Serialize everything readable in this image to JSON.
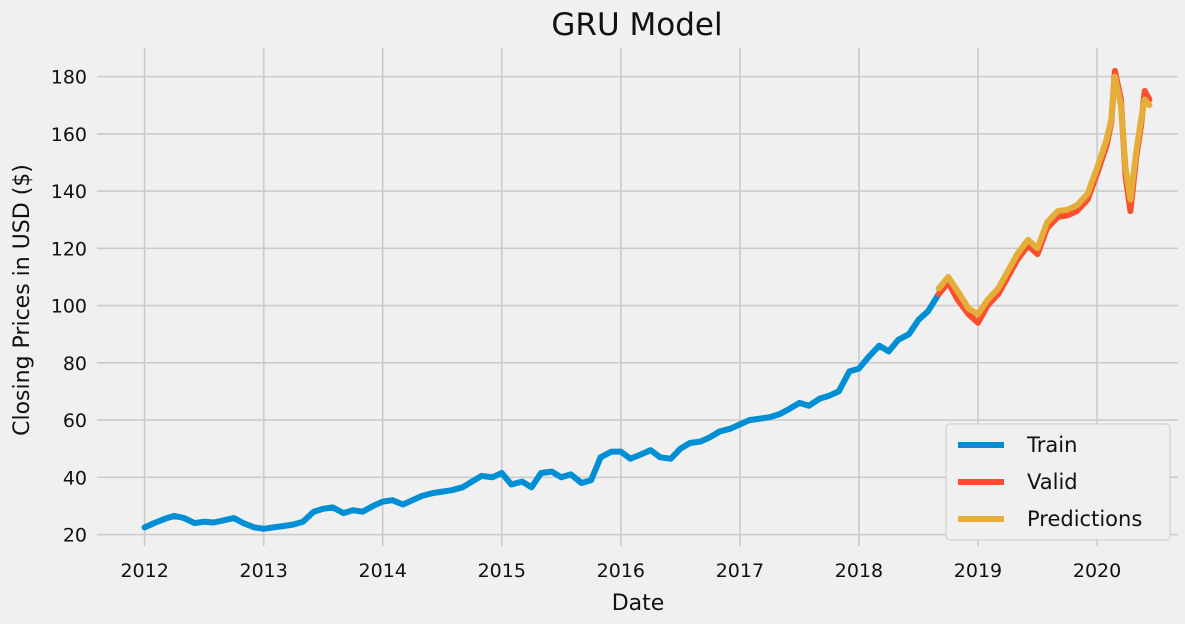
{
  "chart_data": {
    "type": "line",
    "title": "GRU Model",
    "xlabel": "Date",
    "ylabel": "Closing Prices in USD ($)",
    "xlim": [
      2011.6,
      2020.68
    ],
    "ylim": [
      16,
      190
    ],
    "x_ticks": [
      2012,
      2013,
      2014,
      2015,
      2016,
      2017,
      2018,
      2019,
      2020
    ],
    "x_tick_labels": [
      "2012",
      "2013",
      "2014",
      "2015",
      "2016",
      "2017",
      "2018",
      "2019",
      "2020"
    ],
    "y_ticks": [
      20,
      40,
      60,
      80,
      100,
      120,
      140,
      160,
      180
    ],
    "y_tick_labels": [
      "20",
      "40",
      "60",
      "80",
      "100",
      "120",
      "140",
      "160",
      "180"
    ],
    "grid": true,
    "legend_position": "bottom-right",
    "series": [
      {
        "name": "Train",
        "color": "#008fd5",
        "points": [
          [
            2012.0,
            22.5
          ],
          [
            2012.08,
            24.0
          ],
          [
            2012.17,
            25.5
          ],
          [
            2012.25,
            26.5
          ],
          [
            2012.33,
            25.8
          ],
          [
            2012.42,
            24.0
          ],
          [
            2012.5,
            24.5
          ],
          [
            2012.58,
            24.2
          ],
          [
            2012.67,
            25.0
          ],
          [
            2012.75,
            25.8
          ],
          [
            2012.83,
            24.0
          ],
          [
            2012.92,
            22.5
          ],
          [
            2013.0,
            22.0
          ],
          [
            2013.08,
            22.5
          ],
          [
            2013.17,
            23.0
          ],
          [
            2013.25,
            23.5
          ],
          [
            2013.33,
            24.5
          ],
          [
            2013.42,
            28.0
          ],
          [
            2013.5,
            29.0
          ],
          [
            2013.58,
            29.5
          ],
          [
            2013.67,
            27.5
          ],
          [
            2013.75,
            28.5
          ],
          [
            2013.83,
            28.0
          ],
          [
            2013.92,
            30.0
          ],
          [
            2014.0,
            31.5
          ],
          [
            2014.08,
            32.0
          ],
          [
            2014.17,
            30.5
          ],
          [
            2014.25,
            32.0
          ],
          [
            2014.33,
            33.5
          ],
          [
            2014.42,
            34.5
          ],
          [
            2014.5,
            35.0
          ],
          [
            2014.58,
            35.5
          ],
          [
            2014.67,
            36.5
          ],
          [
            2014.75,
            38.5
          ],
          [
            2014.83,
            40.5
          ],
          [
            2014.92,
            40.0
          ],
          [
            2015.0,
            41.5
          ],
          [
            2015.08,
            37.5
          ],
          [
            2015.17,
            38.5
          ],
          [
            2015.25,
            36.5
          ],
          [
            2015.33,
            41.5
          ],
          [
            2015.42,
            42.0
          ],
          [
            2015.5,
            40.0
          ],
          [
            2015.58,
            41.0
          ],
          [
            2015.67,
            38.0
          ],
          [
            2015.75,
            39.0
          ],
          [
            2015.83,
            47.0
          ],
          [
            2015.92,
            49.0
          ],
          [
            2016.0,
            49.0
          ],
          [
            2016.08,
            46.5
          ],
          [
            2016.17,
            48.0
          ],
          [
            2016.25,
            49.5
          ],
          [
            2016.33,
            47.0
          ],
          [
            2016.42,
            46.5
          ],
          [
            2016.5,
            50.0
          ],
          [
            2016.58,
            52.0
          ],
          [
            2016.67,
            52.5
          ],
          [
            2016.75,
            54.0
          ],
          [
            2016.83,
            56.0
          ],
          [
            2016.92,
            57.0
          ],
          [
            2017.0,
            58.5
          ],
          [
            2017.08,
            60.0
          ],
          [
            2017.17,
            60.5
          ],
          [
            2017.25,
            61.0
          ],
          [
            2017.33,
            62.0
          ],
          [
            2017.42,
            64.0
          ],
          [
            2017.5,
            66.0
          ],
          [
            2017.58,
            65.0
          ],
          [
            2017.67,
            67.5
          ],
          [
            2017.75,
            68.5
          ],
          [
            2017.83,
            70.0
          ],
          [
            2017.92,
            77.0
          ],
          [
            2018.0,
            78.0
          ],
          [
            2018.08,
            82.0
          ],
          [
            2018.17,
            86.0
          ],
          [
            2018.25,
            84.0
          ],
          [
            2018.33,
            88.0
          ],
          [
            2018.42,
            90.0
          ],
          [
            2018.5,
            95.0
          ],
          [
            2018.58,
            98.0
          ],
          [
            2018.67,
            104.0
          ]
        ]
      },
      {
        "name": "Valid",
        "color": "#fc4f30",
        "points": [
          [
            2018.67,
            104.0
          ],
          [
            2018.75,
            108.0
          ],
          [
            2018.83,
            102.0
          ],
          [
            2018.92,
            97.0
          ],
          [
            2019.0,
            94.0
          ],
          [
            2019.08,
            100.0
          ],
          [
            2019.17,
            104.0
          ],
          [
            2019.25,
            110.0
          ],
          [
            2019.33,
            116.0
          ],
          [
            2019.42,
            121.0
          ],
          [
            2019.5,
            118.0
          ],
          [
            2019.58,
            127.0
          ],
          [
            2019.67,
            131.0
          ],
          [
            2019.75,
            131.5
          ],
          [
            2019.83,
            133.0
          ],
          [
            2019.92,
            137.0
          ],
          [
            2020.0,
            146.0
          ],
          [
            2020.08,
            156.0
          ],
          [
            2020.12,
            164.0
          ],
          [
            2020.15,
            182.0
          ],
          [
            2020.2,
            172.0
          ],
          [
            2020.24,
            145.0
          ],
          [
            2020.28,
            133.0
          ],
          [
            2020.33,
            152.0
          ],
          [
            2020.37,
            163.0
          ],
          [
            2020.4,
            175.0
          ],
          [
            2020.44,
            172.0
          ]
        ]
      },
      {
        "name": "Predictions",
        "color": "#e5ae38",
        "points": [
          [
            2018.67,
            106.0
          ],
          [
            2018.75,
            110.0
          ],
          [
            2018.83,
            105.0
          ],
          [
            2018.92,
            99.0
          ],
          [
            2019.0,
            97.0
          ],
          [
            2019.08,
            102.0
          ],
          [
            2019.17,
            106.0
          ],
          [
            2019.25,
            112.0
          ],
          [
            2019.33,
            118.0
          ],
          [
            2019.42,
            123.0
          ],
          [
            2019.5,
            120.0
          ],
          [
            2019.58,
            129.0
          ],
          [
            2019.67,
            133.0
          ],
          [
            2019.75,
            133.5
          ],
          [
            2019.83,
            135.0
          ],
          [
            2019.92,
            139.0
          ],
          [
            2020.0,
            148.0
          ],
          [
            2020.08,
            158.0
          ],
          [
            2020.12,
            165.0
          ],
          [
            2020.15,
            180.0
          ],
          [
            2020.2,
            170.0
          ],
          [
            2020.24,
            148.0
          ],
          [
            2020.28,
            137.0
          ],
          [
            2020.33,
            154.0
          ],
          [
            2020.37,
            165.0
          ],
          [
            2020.4,
            172.0
          ],
          [
            2020.44,
            170.0
          ]
        ]
      }
    ]
  }
}
